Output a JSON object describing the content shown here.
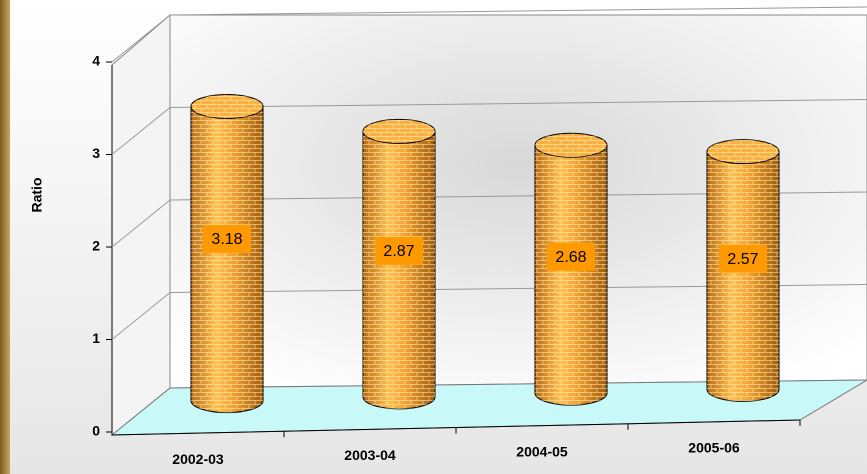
{
  "chart_data": {
    "type": "bar",
    "y_label": "Ratio",
    "categories": [
      "2002-03",
      "2003-04",
      "2004-05",
      "2005-06"
    ],
    "values": [
      3.18,
      2.87,
      2.68,
      2.57
    ],
    "color": "#f0a030",
    "ylim": [
      0,
      4
    ],
    "yticks": [
      0,
      1,
      2,
      3,
      4
    ],
    "grid": true
  }
}
